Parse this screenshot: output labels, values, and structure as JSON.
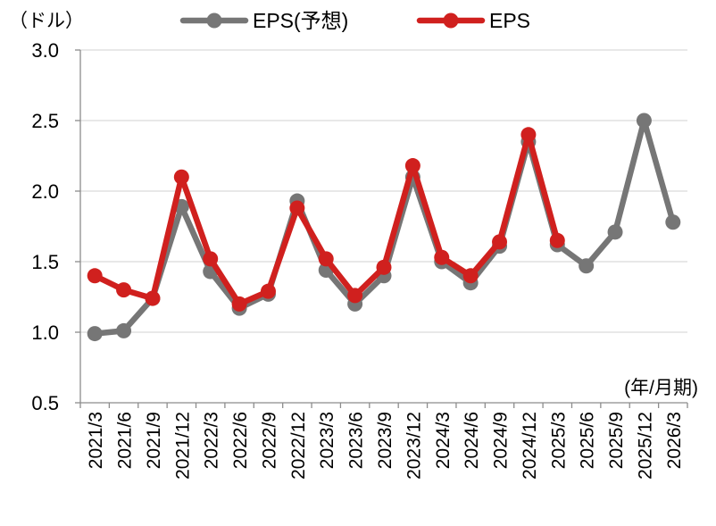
{
  "chart_data": {
    "type": "line",
    "unit_label": "（ドル）",
    "period_label": "(年/月期)",
    "categories": [
      "2021/3",
      "2021/6",
      "2021/9",
      "2021/12",
      "2022/3",
      "2022/6",
      "2022/9",
      "2022/12",
      "2023/3",
      "2023/6",
      "2023/9",
      "2023/12",
      "2024/3",
      "2024/6",
      "2024/9",
      "2024/12",
      "2025/3",
      "2025/6",
      "2025/9",
      "2025/12",
      "2026/3"
    ],
    "ylim": [
      0.5,
      3.0
    ],
    "yticks": [
      "0.5",
      "1.0",
      "1.5",
      "2.0",
      "2.5",
      "3.0"
    ],
    "grid": true,
    "legend_position": "top",
    "series": [
      {
        "name": "EPS(予想)",
        "color": "#767676",
        "values": [
          0.99,
          1.01,
          1.24,
          1.89,
          1.43,
          1.17,
          1.27,
          1.93,
          1.44,
          1.2,
          1.4,
          2.1,
          1.5,
          1.35,
          1.61,
          2.35,
          1.62,
          1.47,
          1.71,
          2.5,
          1.78
        ]
      },
      {
        "name": "EPS",
        "color": "#d0201e",
        "values": [
          1.4,
          1.3,
          1.24,
          2.1,
          1.52,
          1.2,
          1.29,
          1.88,
          1.52,
          1.26,
          1.46,
          2.18,
          1.53,
          1.4,
          1.64,
          2.4,
          1.65,
          null,
          null,
          null,
          null
        ]
      }
    ]
  }
}
